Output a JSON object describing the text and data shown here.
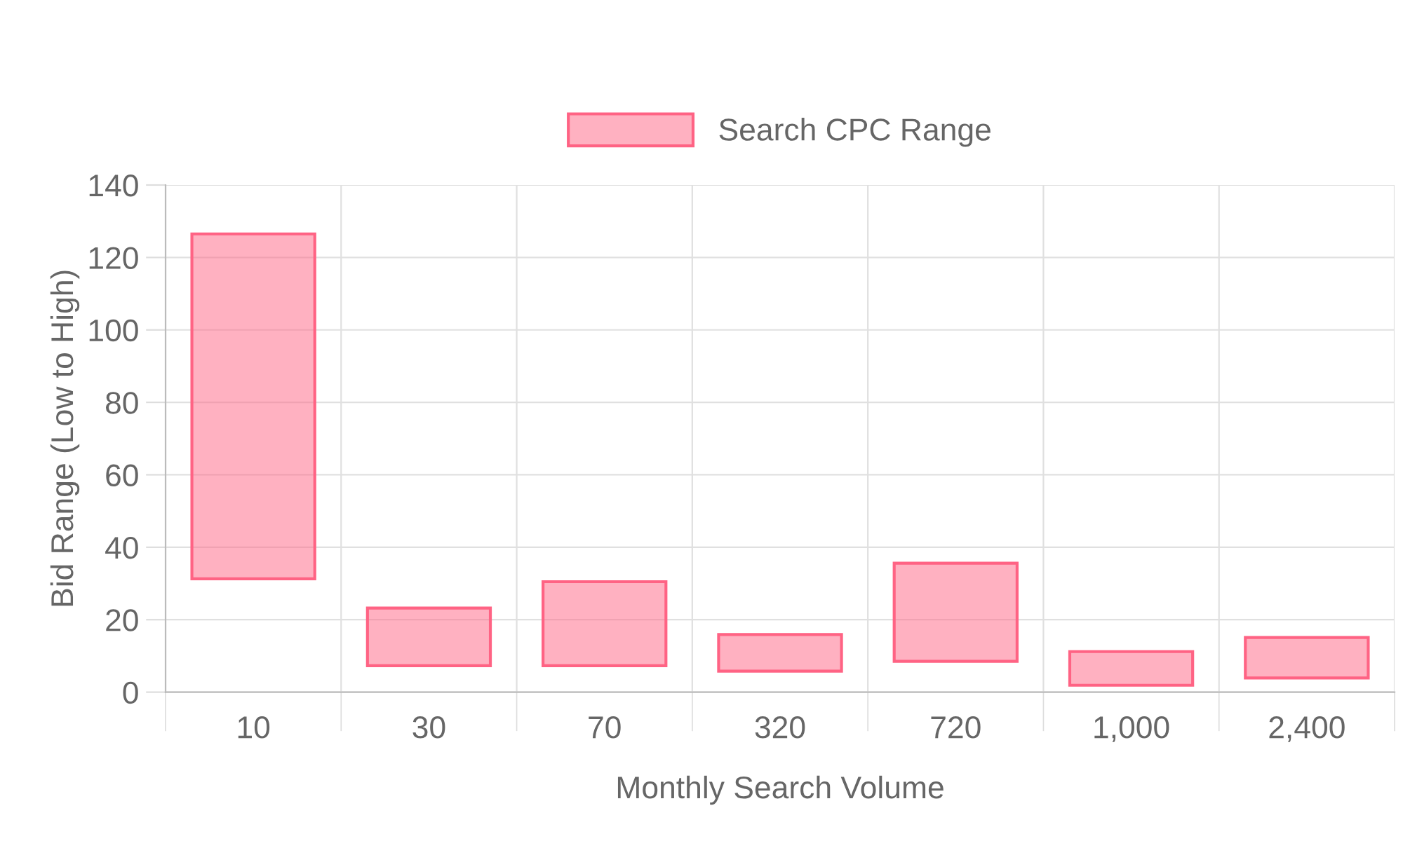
{
  "chart_data": {
    "type": "bar",
    "xlabel": "Monthly Search Volume",
    "ylabel": "Bid Range (Low to High)",
    "categories": [
      "10",
      "30",
      "70",
      "320",
      "720",
      "1,000",
      "2,400"
    ],
    "series": [
      {
        "name": "Search CPC Range",
        "color": "#ff6384",
        "base": [
          31.3,
          7.3,
          7.3,
          5.8,
          8.5,
          1.9,
          3.9
        ],
        "values": [
          95.2,
          15.9,
          23.2,
          10.1,
          27.1,
          9.3,
          11.2
        ]
      }
    ],
    "ylim": [
      0,
      140
    ],
    "yticks": [
      0,
      20,
      40,
      60,
      80,
      100,
      120,
      140
    ],
    "grid": true,
    "legend": "top"
  }
}
